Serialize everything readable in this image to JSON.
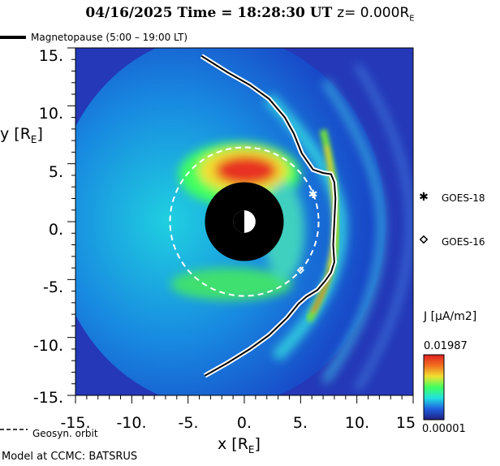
{
  "header": {
    "date": "04/16/2025",
    "time_text": "Time = 18:28:30 UT",
    "z_text": "z= 0.000R",
    "z_sub": "E"
  },
  "legend": {
    "magnetopause_label": "Magnetopause (5:00 – 19:00 LT)",
    "geosync_label": "Geosyn. orbit"
  },
  "footer": {
    "model": "Model at CCMC: BATSRUS"
  },
  "satellites": [
    {
      "name": "GOES-18",
      "marker": "asterisk",
      "x": 6.1,
      "y": 2.3
    },
    {
      "name": "GOES-16",
      "marker": "diamond",
      "x": 5.0,
      "y": -4.2
    }
  ],
  "colorbar": {
    "title": "J [μA/m2]",
    "max_label": "0.01987",
    "min_label": "0.00001",
    "colors": [
      "#e02020",
      "#f07020",
      "#f0e030",
      "#40ff60",
      "#20e0e0",
      "#2060e0",
      "#202080"
    ]
  },
  "chart_data": {
    "type": "heatmap",
    "title": "04/16/2025 Time = 18:28:30 UT z= 0.000RE",
    "xlabel": "x [R",
    "ylabel": "y [R",
    "label_sub": "E",
    "xlim": [
      -15,
      15
    ],
    "ylim": [
      -15,
      15
    ],
    "x_tick_labels": [
      "-15.",
      "-10.",
      "-5.",
      "0.",
      "5.",
      "10.",
      "15"
    ],
    "y_tick_labels": [
      "15.",
      "10.",
      "5.",
      "0.",
      "-5.",
      "-10.",
      "-15."
    ],
    "x_ticks": [
      -15,
      -10,
      -5,
      0,
      5,
      10,
      15
    ],
    "y_ticks": [
      15,
      10,
      5,
      0,
      -5,
      -10,
      -15
    ],
    "earth_radius": 3.5,
    "geosync_radius": 6.6,
    "quantity_range": [
      1e-05,
      0.01987
    ],
    "magnetopause": [
      [
        -3.8,
        14.3
      ],
      [
        -1.5,
        12.9
      ],
      [
        0.5,
        11.8
      ],
      [
        2.2,
        10.6
      ],
      [
        3.6,
        9.0
      ],
      [
        4.4,
        7.6
      ],
      [
        5.1,
        5.9
      ],
      [
        6.1,
        4.5
      ],
      [
        7.0,
        4.2
      ],
      [
        7.7,
        4.1
      ],
      [
        8.0,
        3.4
      ],
      [
        8.1,
        2.0
      ],
      [
        8.0,
        0.0
      ],
      [
        7.9,
        -2.0
      ],
      [
        8.0,
        -3.5
      ],
      [
        7.7,
        -4.4
      ],
      [
        7.2,
        -5.1
      ],
      [
        6.5,
        -5.9
      ],
      [
        5.5,
        -6.5
      ],
      [
        4.8,
        -7.1
      ],
      [
        3.8,
        -8.3
      ],
      [
        2.2,
        -9.8
      ],
      [
        0.5,
        -11.0
      ],
      [
        -1.5,
        -12.2
      ],
      [
        -3.5,
        -13.3
      ]
    ]
  }
}
